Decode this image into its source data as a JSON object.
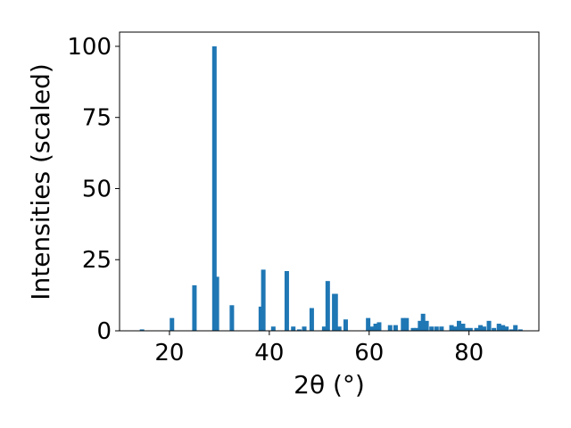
{
  "chart_data": {
    "type": "bar",
    "xlabel": "2θ (°)",
    "ylabel": "Intensities (scaled)",
    "xlim": [
      10,
      94
    ],
    "ylim": [
      0,
      105
    ],
    "xticks": [
      "20",
      "40",
      "60",
      "80"
    ],
    "yticks": [
      "0",
      "25",
      "50",
      "75",
      "100"
    ],
    "grid": false,
    "bar_color": "#1f77b4",
    "series": [
      {
        "x": [
          14.5,
          20.5,
          25.0,
          29.0,
          29.5,
          32.5,
          38.3,
          38.8,
          40.8,
          43.5,
          44.8,
          46.0,
          47.0,
          48.5,
          51.0,
          51.7,
          53.0,
          53.3,
          54.0,
          55.3,
          59.8,
          60.5,
          61.3,
          62.0,
          64.2,
          65.3,
          66.8,
          67.5,
          68.8,
          69.5,
          70.2,
          70.8,
          71.5,
          72.5,
          73.5,
          74.5,
          76.5,
          77.3,
          78.0,
          78.8,
          79.5,
          80.3,
          81.5,
          82.3,
          83.0,
          84.0,
          85.0,
          86.0,
          86.8,
          87.5,
          88.5,
          89.3,
          90.3
        ],
        "y": [
          0.5,
          4.5,
          16,
          100,
          19,
          9,
          8.5,
          21.5,
          1.5,
          21,
          1.5,
          0.5,
          1.5,
          8,
          1.5,
          17.5,
          13,
          13,
          1.5,
          4,
          4.5,
          1.5,
          2.5,
          3,
          2,
          2,
          4.5,
          4.5,
          1,
          1,
          3.5,
          6,
          3.5,
          1.5,
          1.5,
          1.5,
          2,
          1.5,
          3.5,
          2.5,
          1,
          1,
          1,
          2,
          1.5,
          3.5,
          1,
          2.5,
          2,
          1.5,
          0.5,
          2,
          0.5
        ]
      }
    ]
  }
}
